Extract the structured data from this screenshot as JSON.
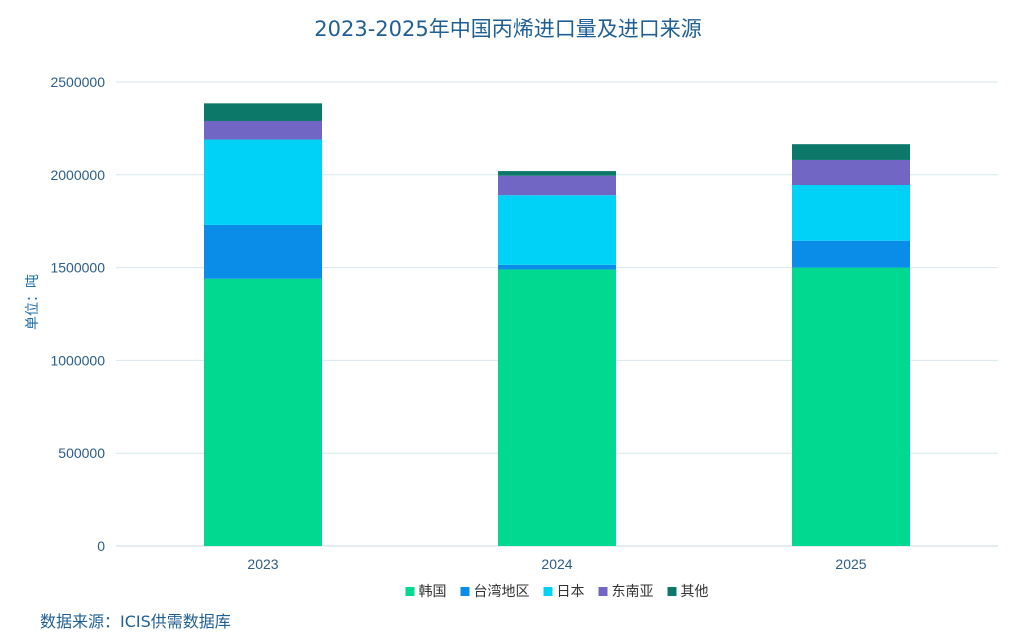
{
  "chart_data": {
    "type": "bar",
    "stacked": true,
    "title": "2023-2025年中国丙烯进口量及进口来源",
    "xlabel": "",
    "ylabel": "单位：吨",
    "categories": [
      "2023",
      "2024",
      "2025"
    ],
    "ylim": [
      0,
      2500000
    ],
    "yticks": [
      "0",
      "500000",
      "1000000",
      "1500000",
      "2000000",
      "2500000"
    ],
    "grid": true,
    "legend_position": "bottom",
    "series": [
      {
        "name": "韩国",
        "color": "#00d98f",
        "values": [
          1440000,
          1490000,
          1500000
        ]
      },
      {
        "name": "台湾地区",
        "color": "#0a8de8",
        "values": [
          290000,
          25000,
          145000
        ]
      },
      {
        "name": "日本",
        "color": "#00d2f7",
        "values": [
          460000,
          375000,
          300000
        ]
      },
      {
        "name": "东南亚",
        "color": "#7166c4",
        "values": [
          100000,
          105000,
          135000
        ]
      },
      {
        "name": "其他",
        "color": "#0b786a",
        "values": [
          95000,
          25000,
          85000
        ]
      }
    ]
  },
  "source_note": "数据来源：ICIS供需数据库"
}
